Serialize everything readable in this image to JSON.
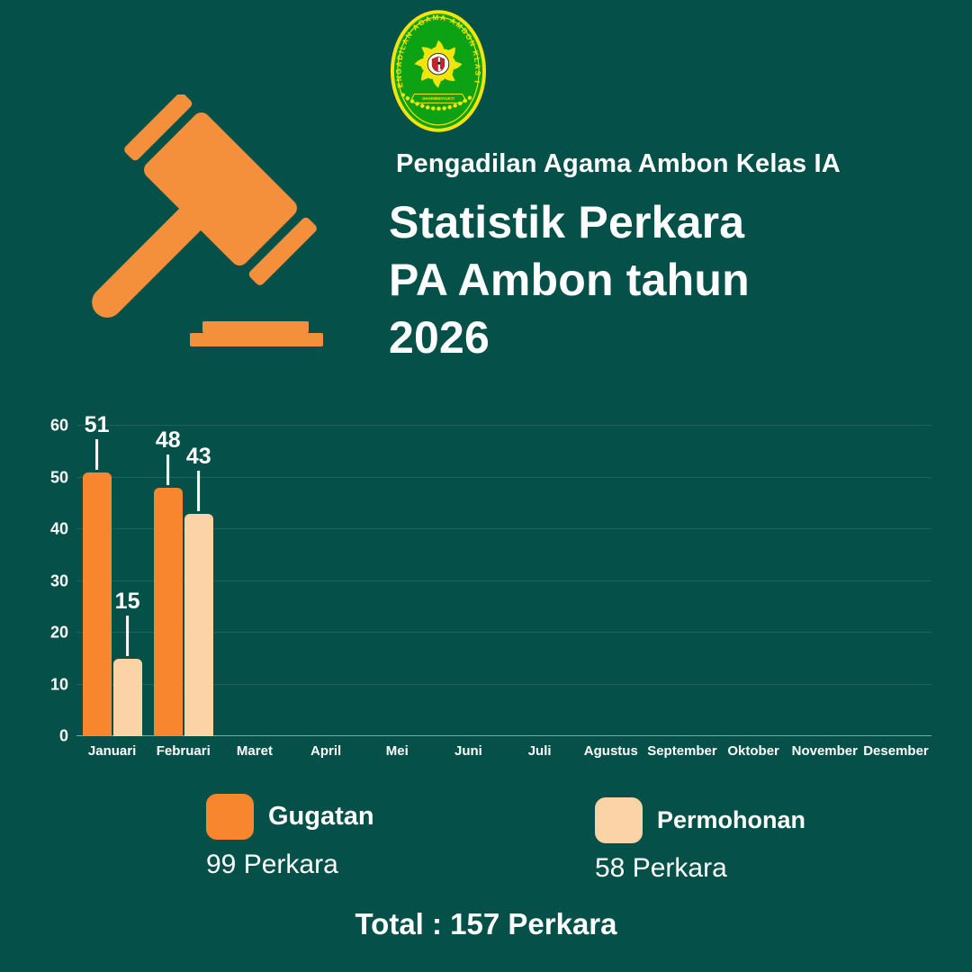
{
  "page": {
    "background": "#055149"
  },
  "logo": {
    "arc_text": "PENGADILAN AGAMA AMBON KLAS I A",
    "banner_text": "DHARMMAYUKTI",
    "green": "#0DA213",
    "yellow": "#F2E40C",
    "shield_red": "#C3242A"
  },
  "header": {
    "subtitle": "Pengadilan Agama Ambon Kelas IA",
    "title_line1": "Statistik Perkara",
    "title_line2": "PA Ambon tahun",
    "title_line3": "2026"
  },
  "icons": {
    "gavel_color": "#F4903C"
  },
  "chart_data": {
    "type": "bar",
    "title": "Statistik Perkara PA Ambon tahun 2026",
    "categories": [
      "Januari",
      "Februari",
      "Maret",
      "April",
      "Mei",
      "Juni",
      "Juli",
      "Agustus",
      "September",
      "Oktober",
      "November",
      "Desember"
    ],
    "series": [
      {
        "name": "Gugatan",
        "color": "#F8862F",
        "values": [
          51,
          48,
          0,
          0,
          0,
          0,
          0,
          0,
          0,
          0,
          0,
          0
        ]
      },
      {
        "name": "Permohonan",
        "color": "#FCD3A7",
        "values": [
          15,
          43,
          0,
          0,
          0,
          0,
          0,
          0,
          0,
          0,
          0,
          0
        ]
      }
    ],
    "xlabel": "",
    "ylabel": "",
    "ylim": [
      0,
      60
    ],
    "yticks": [
      0,
      10,
      20,
      30,
      40,
      50,
      60
    ],
    "grid": true,
    "legend_position": "bottom"
  },
  "legend": {
    "items": [
      {
        "label": "Gugatan",
        "count_text": "99 Perkara",
        "color": "#F8862F"
      },
      {
        "label": "Permohonan",
        "count_text": "58 Perkara",
        "color": "#FCD3A7"
      }
    ]
  },
  "total": {
    "text": "Total : 157 Perkara"
  }
}
